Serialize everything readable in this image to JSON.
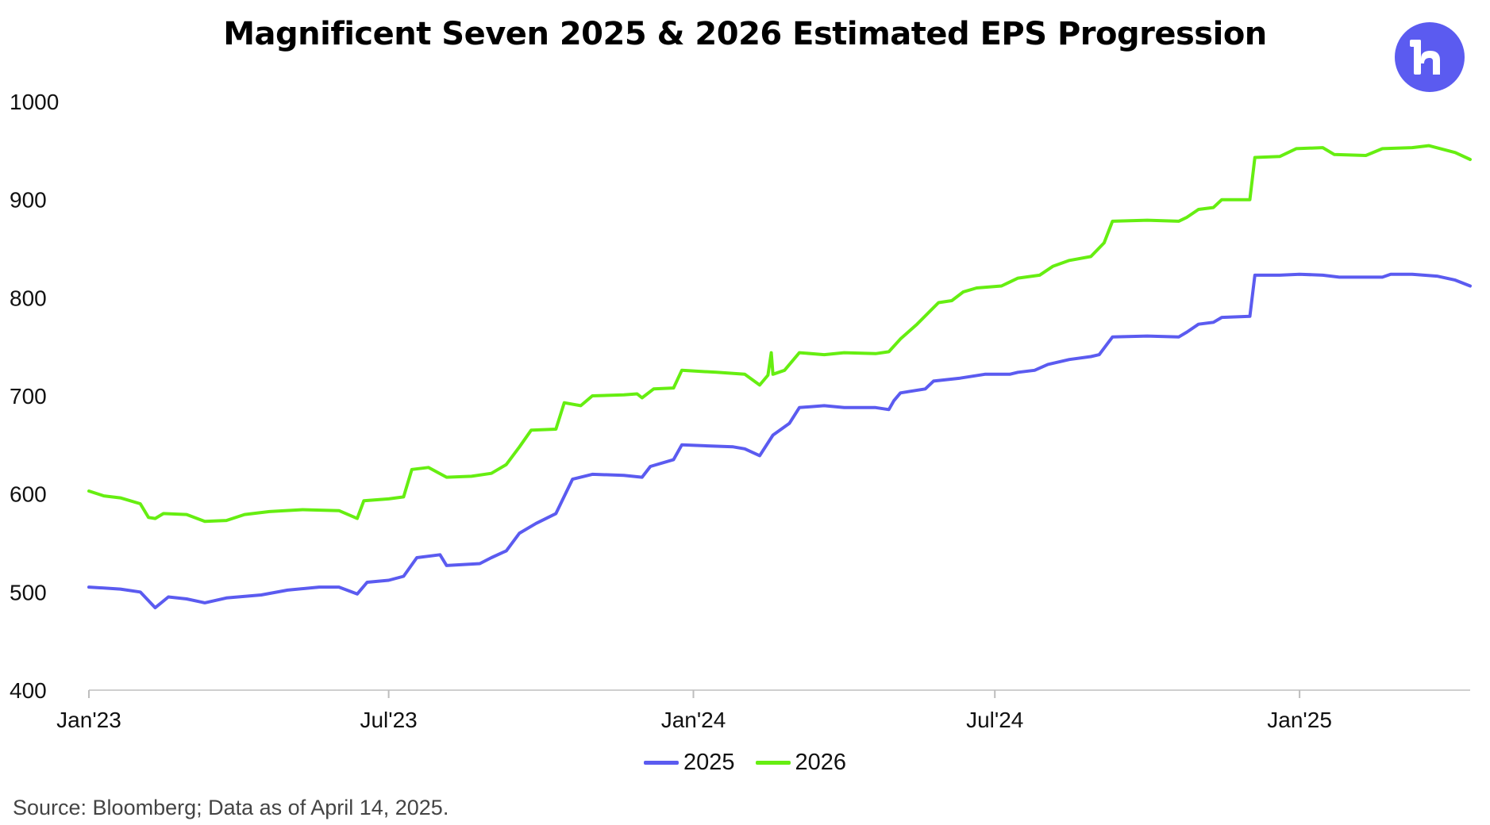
{
  "header": {
    "title": "Magnificent Seven 2025 & 2026 Estimated EPS Progression"
  },
  "logo": {
    "icon": "brand-logo-icon",
    "color": "#5b5bf0"
  },
  "footer": {
    "source": "Source: Bloomberg; Data as of April 14, 2025."
  },
  "chart_data": {
    "type": "line",
    "title": "Magnificent Seven 2025 & 2026 Estimated EPS Progression",
    "xlabel": "",
    "ylabel": "",
    "x_range": [
      "2023-01-01",
      "2025-04-14"
    ],
    "ylim": [
      400,
      1000
    ],
    "y_ticks": [
      400,
      500,
      600,
      700,
      800,
      900,
      1000
    ],
    "x_ticks": [
      {
        "date": "2023-01-01",
        "label": "Jan'23"
      },
      {
        "date": "2023-07-01",
        "label": "Jul'23"
      },
      {
        "date": "2024-01-01",
        "label": "Jan'24"
      },
      {
        "date": "2024-07-01",
        "label": "Jul'24"
      },
      {
        "date": "2025-01-01",
        "label": "Jan'25"
      }
    ],
    "grid": false,
    "legend_position": "bottom-center",
    "series": [
      {
        "name": "2025",
        "color": "#5b5bf0",
        "points": [
          [
            "2023-01-01",
            505
          ],
          [
            "2023-01-20",
            503
          ],
          [
            "2023-02-01",
            500
          ],
          [
            "2023-02-10",
            484
          ],
          [
            "2023-02-18",
            495
          ],
          [
            "2023-03-01",
            493
          ],
          [
            "2023-03-12",
            489
          ],
          [
            "2023-03-25",
            494
          ],
          [
            "2023-04-15",
            497
          ],
          [
            "2023-05-01",
            502
          ],
          [
            "2023-05-20",
            505
          ],
          [
            "2023-06-01",
            505
          ],
          [
            "2023-06-12",
            498
          ],
          [
            "2023-06-18",
            510
          ],
          [
            "2023-07-01",
            512
          ],
          [
            "2023-07-10",
            516
          ],
          [
            "2023-07-18",
            535
          ],
          [
            "2023-08-01",
            538
          ],
          [
            "2023-08-05",
            527
          ],
          [
            "2023-08-25",
            529
          ],
          [
            "2023-09-01",
            535
          ],
          [
            "2023-09-10",
            542
          ],
          [
            "2023-09-18",
            560
          ],
          [
            "2023-09-28",
            570
          ],
          [
            "2023-10-10",
            580
          ],
          [
            "2023-10-20",
            615
          ],
          [
            "2023-11-01",
            620
          ],
          [
            "2023-11-20",
            619
          ],
          [
            "2023-12-01",
            617
          ],
          [
            "2023-12-06",
            628
          ],
          [
            "2023-12-20",
            635
          ],
          [
            "2023-12-25",
            650
          ],
          [
            "2024-01-10",
            649
          ],
          [
            "2024-01-25",
            648
          ],
          [
            "2024-02-01",
            646
          ],
          [
            "2024-02-10",
            639
          ],
          [
            "2024-02-18",
            660
          ],
          [
            "2024-02-28",
            672
          ],
          [
            "2024-03-05",
            688
          ],
          [
            "2024-03-20",
            690
          ],
          [
            "2024-04-01",
            688
          ],
          [
            "2024-04-20",
            688
          ],
          [
            "2024-04-28",
            686
          ],
          [
            "2024-05-01",
            695
          ],
          [
            "2024-05-05",
            703
          ],
          [
            "2024-05-20",
            707
          ],
          [
            "2024-05-25",
            715
          ],
          [
            "2024-06-10",
            718
          ],
          [
            "2024-06-25",
            722
          ],
          [
            "2024-07-10",
            722
          ],
          [
            "2024-07-15",
            724
          ],
          [
            "2024-07-25",
            726
          ],
          [
            "2024-08-02",
            732
          ],
          [
            "2024-08-15",
            737
          ],
          [
            "2024-08-28",
            740
          ],
          [
            "2024-09-02",
            742
          ],
          [
            "2024-09-10",
            760
          ],
          [
            "2024-10-01",
            761
          ],
          [
            "2024-10-20",
            760
          ],
          [
            "2024-10-25",
            765
          ],
          [
            "2024-11-01",
            773
          ],
          [
            "2024-11-10",
            775
          ],
          [
            "2024-11-15",
            780
          ],
          [
            "2024-12-02",
            781
          ],
          [
            "2024-12-05",
            823
          ],
          [
            "2024-12-20",
            823
          ],
          [
            "2025-01-01",
            824
          ],
          [
            "2025-01-15",
            823
          ],
          [
            "2025-01-25",
            821
          ],
          [
            "2025-02-10",
            821
          ],
          [
            "2025-02-20",
            821
          ],
          [
            "2025-02-25",
            824
          ],
          [
            "2025-03-10",
            824
          ],
          [
            "2025-03-25",
            822
          ],
          [
            "2025-04-05",
            818
          ],
          [
            "2025-04-14",
            812
          ]
        ]
      },
      {
        "name": "2026",
        "color": "#66ee11",
        "points": [
          [
            "2023-01-01",
            603
          ],
          [
            "2023-01-10",
            598
          ],
          [
            "2023-01-20",
            596
          ],
          [
            "2023-02-01",
            590
          ],
          [
            "2023-02-06",
            576
          ],
          [
            "2023-02-10",
            575
          ],
          [
            "2023-02-15",
            580
          ],
          [
            "2023-03-01",
            579
          ],
          [
            "2023-03-12",
            572
          ],
          [
            "2023-03-25",
            573
          ],
          [
            "2023-04-05",
            579
          ],
          [
            "2023-04-20",
            582
          ],
          [
            "2023-05-10",
            584
          ],
          [
            "2023-06-01",
            583
          ],
          [
            "2023-06-12",
            575
          ],
          [
            "2023-06-16",
            593
          ],
          [
            "2023-07-01",
            595
          ],
          [
            "2023-07-10",
            597
          ],
          [
            "2023-07-15",
            625
          ],
          [
            "2023-07-25",
            627
          ],
          [
            "2023-08-05",
            617
          ],
          [
            "2023-08-20",
            618
          ],
          [
            "2023-09-01",
            621
          ],
          [
            "2023-09-10",
            630
          ],
          [
            "2023-09-18",
            648
          ],
          [
            "2023-09-25",
            665
          ],
          [
            "2023-10-10",
            666
          ],
          [
            "2023-10-15",
            693
          ],
          [
            "2023-10-25",
            690
          ],
          [
            "2023-11-01",
            700
          ],
          [
            "2023-11-20",
            701
          ],
          [
            "2023-11-28",
            702
          ],
          [
            "2023-12-01",
            698
          ],
          [
            "2023-12-08",
            707
          ],
          [
            "2023-12-20",
            708
          ],
          [
            "2023-12-25",
            726
          ],
          [
            "2024-01-15",
            724
          ],
          [
            "2024-02-01",
            722
          ],
          [
            "2024-02-10",
            711
          ],
          [
            "2024-02-15",
            721
          ],
          [
            "2024-02-17",
            744
          ],
          [
            "2024-02-18",
            722
          ],
          [
            "2024-02-25",
            726
          ],
          [
            "2024-03-05",
            744
          ],
          [
            "2024-03-20",
            742
          ],
          [
            "2024-04-01",
            744
          ],
          [
            "2024-04-20",
            743
          ],
          [
            "2024-04-28",
            745
          ],
          [
            "2024-05-05",
            758
          ],
          [
            "2024-05-15",
            773
          ],
          [
            "2024-05-28",
            795
          ],
          [
            "2024-06-05",
            797
          ],
          [
            "2024-06-12",
            806
          ],
          [
            "2024-06-20",
            810
          ],
          [
            "2024-07-05",
            812
          ],
          [
            "2024-07-15",
            820
          ],
          [
            "2024-07-28",
            823
          ],
          [
            "2024-08-05",
            832
          ],
          [
            "2024-08-15",
            838
          ],
          [
            "2024-08-28",
            842
          ],
          [
            "2024-09-05",
            856
          ],
          [
            "2024-09-10",
            878
          ],
          [
            "2024-10-01",
            879
          ],
          [
            "2024-10-20",
            878
          ],
          [
            "2024-10-25",
            882
          ],
          [
            "2024-11-01",
            890
          ],
          [
            "2024-11-10",
            892
          ],
          [
            "2024-11-15",
            900
          ],
          [
            "2024-12-02",
            900
          ],
          [
            "2024-12-05",
            943
          ],
          [
            "2024-12-20",
            944
          ],
          [
            "2024-12-30",
            952
          ],
          [
            "2025-01-15",
            953
          ],
          [
            "2025-01-22",
            946
          ],
          [
            "2025-02-10",
            945
          ],
          [
            "2025-02-20",
            952
          ],
          [
            "2025-03-10",
            953
          ],
          [
            "2025-03-20",
            955
          ],
          [
            "2025-04-05",
            948
          ],
          [
            "2025-04-14",
            941
          ]
        ]
      }
    ]
  }
}
